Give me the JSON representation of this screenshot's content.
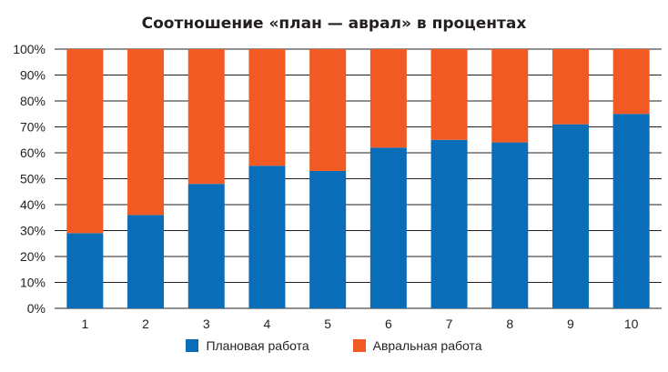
{
  "chart_data": {
    "type": "bar",
    "stacked": true,
    "title": "Соотношение «план — аврал» в процентах",
    "xlabel": "",
    "ylabel": "",
    "categories": [
      "1",
      "2",
      "3",
      "4",
      "5",
      "6",
      "7",
      "8",
      "9",
      "10"
    ],
    "series": [
      {
        "name": "Плановая работа",
        "color": "#0a6db7",
        "values": [
          29,
          36,
          48,
          55,
          53,
          62,
          65,
          64,
          71,
          75
        ]
      },
      {
        "name": "Авральная работа",
        "color": "#f15a22",
        "values": [
          71,
          64,
          52,
          45,
          47,
          38,
          35,
          36,
          29,
          25
        ]
      }
    ],
    "ylim": [
      0,
      100
    ],
    "yticks": [
      "0%",
      "10%",
      "20%",
      "30%",
      "40%",
      "50%",
      "60%",
      "70%",
      "80%",
      "90%",
      "100%"
    ],
    "grid": true,
    "legend_position": "bottom"
  }
}
